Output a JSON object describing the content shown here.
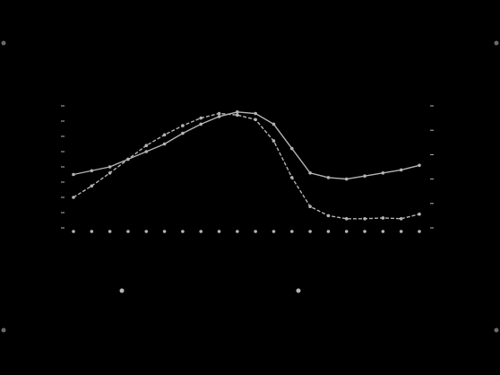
{
  "chart_data": {
    "type": "line",
    "title": "",
    "subtitle": "",
    "xlabel": "",
    "ylabel_left": "",
    "ylabel_right": "",
    "categories": [
      "",
      "",
      "",
      "",
      "",
      "",
      "",
      "",
      "",
      "",
      "",
      "",
      "",
      "",
      "",
      "",
      "",
      "",
      "",
      ""
    ],
    "ylim_left": [
      0,
      8
    ],
    "ylim_right": [
      0,
      8
    ],
    "left_tick_labels": [
      "",
      "",
      "",
      "",
      "",
      "",
      "",
      "",
      ""
    ],
    "right_tick_labels": [
      "",
      "",
      "",
      "",
      "",
      ""
    ],
    "grid": false,
    "legend_position": "bottom",
    "series": [
      {
        "name": "",
        "axis": "left",
        "values": [
          3.5,
          3.75,
          4.0,
          4.5,
          5.0,
          5.5,
          6.2,
          6.8,
          7.3,
          7.6,
          7.5,
          6.8,
          5.2,
          3.6,
          3.3,
          3.2,
          3.4,
          3.6,
          3.8,
          4.1
        ]
      },
      {
        "name": "",
        "axis": "right",
        "values": [
          2.0,
          2.75,
          3.6,
          4.5,
          5.4,
          6.1,
          6.7,
          7.2,
          7.5,
          7.4,
          7.1,
          5.7,
          3.3,
          1.4,
          0.8,
          0.6,
          0.6,
          0.65,
          0.6,
          0.9
        ]
      }
    ],
    "footnotes": [
      "",
      ""
    ],
    "colors": {
      "background": "#000000",
      "foreground": "#b4b4b4"
    }
  }
}
